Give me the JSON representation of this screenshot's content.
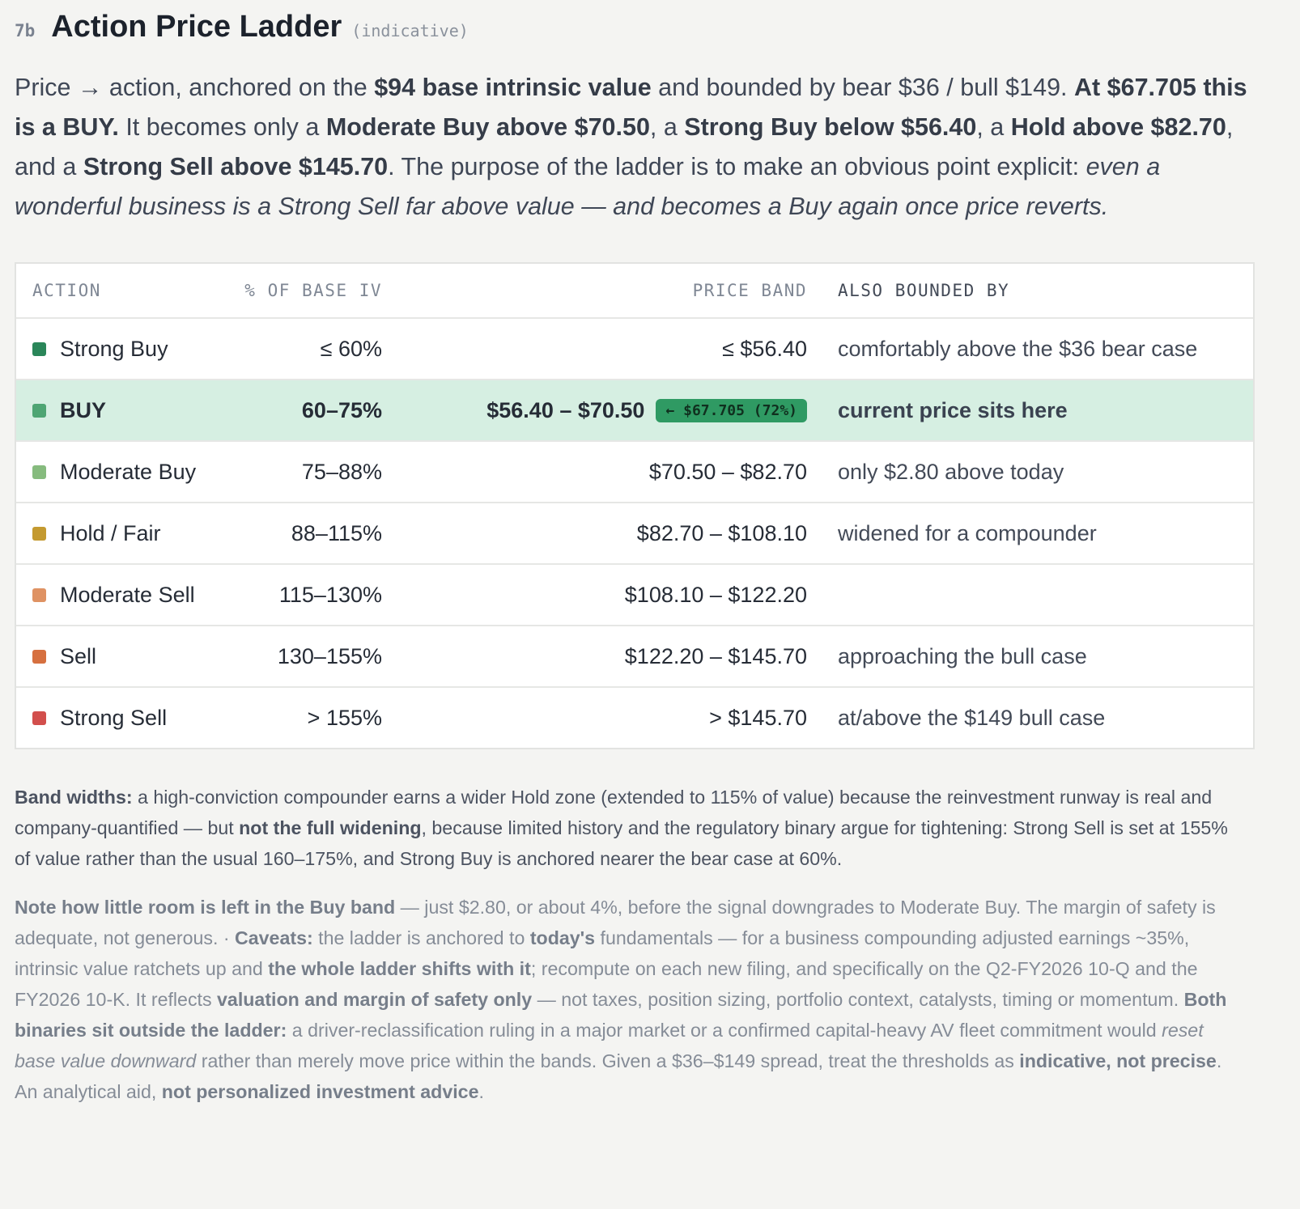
{
  "header": {
    "number": "7b",
    "title": "Action Price Ladder",
    "tag": "(indicative)"
  },
  "intro": [
    {
      "text": "Price → action, anchored on the "
    },
    {
      "text": "$94 base intrinsic value",
      "bold": true
    },
    {
      "text": " and bounded by bear $36 / bull $149. "
    },
    {
      "text": "At $67.705 this is a BUY.",
      "bold": true
    },
    {
      "text": " It becomes only a "
    },
    {
      "text": "Moderate Buy above $70.50",
      "bold": true
    },
    {
      "text": ", a "
    },
    {
      "text": "Strong Buy below $56.40",
      "bold": true
    },
    {
      "text": ", a "
    },
    {
      "text": "Hold above $82.70",
      "bold": true
    },
    {
      "text": ", and a "
    },
    {
      "text": "Strong Sell above $145.70",
      "bold": true
    },
    {
      "text": ". The purpose of the ladder is to make an obvious point explicit: "
    },
    {
      "text": "even a wonderful business is a Strong Sell far above value — and becomes a Buy again once price reverts.",
      "italic": true
    }
  ],
  "table": {
    "columns": [
      "ACTION",
      "% OF BASE IV",
      "PRICE BAND",
      "ALSO BOUNDED BY"
    ],
    "rows": [
      {
        "color": "#2a8659",
        "action": "Strong Buy",
        "pct": "≤ 60%",
        "band": "≤ $56.40",
        "note": "comfortably above the $36 bear case"
      },
      {
        "color": "#4ea573",
        "action": "BUY",
        "pct": "60–75%",
        "band": "$56.40 – $70.50",
        "badge": "← $67.705 (72%)",
        "note": "current price sits here",
        "current": true
      },
      {
        "color": "#86bb7e",
        "action": "Moderate Buy",
        "pct": "75–88%",
        "band": "$70.50 – $82.70",
        "note": "only $2.80 above today"
      },
      {
        "color": "#c49a30",
        "action": "Hold / Fair",
        "pct": "88–115%",
        "band": "$82.70 – $108.10",
        "note": "widened for a compounder"
      },
      {
        "color": "#df9263",
        "action": "Moderate Sell",
        "pct": "115–130%",
        "band": "$108.10 – $122.20"
      },
      {
        "color": "#d6703f",
        "action": "Sell",
        "pct": "130–155%",
        "band": "$122.20 – $145.70",
        "note": "approaching the bull case"
      },
      {
        "color": "#d24f4c",
        "action": "Strong Sell",
        "pct": "> 155%",
        "band": "> $145.70",
        "note": "at/above the $149 bull case"
      }
    ]
  },
  "notes": [
    [
      {
        "text": "Band widths:",
        "bold": true
      },
      {
        "text": " a high-conviction compounder earns a wider Hold zone (extended to 115% of value) because the reinvestment runway is real and company-quantified — but "
      },
      {
        "text": "not the full widening",
        "bold": true
      },
      {
        "text": ", because limited history and the regulatory binary argue for tightening: Strong Sell is set at 155% of value rather than the usual 160–175%, and Strong Buy is anchored nearer the bear case at 60%."
      }
    ],
    [
      {
        "text": "Note how little room is left in the Buy band",
        "bold": true
      },
      {
        "text": " — just $2.80, or about 4%, before the signal downgrades to Moderate Buy. The margin of safety is adequate, not generous.  ·  "
      },
      {
        "text": "Caveats:",
        "bold": true
      },
      {
        "text": " the ladder is anchored to "
      },
      {
        "text": "today's",
        "bold": true
      },
      {
        "text": " fundamentals — for a business compounding adjusted earnings ~35%, intrinsic value ratchets up and "
      },
      {
        "text": "the whole ladder shifts with it",
        "bold": true
      },
      {
        "text": "; recompute on each new filing, and specifically on the Q2-FY2026 10-Q and the FY2026 10-K. It reflects "
      },
      {
        "text": "valuation and margin of safety only",
        "bold": true
      },
      {
        "text": " — not taxes, position sizing, portfolio context, catalysts, timing or momentum. "
      },
      {
        "text": "Both binaries sit outside the ladder:",
        "bold": true
      },
      {
        "text": " a driver-reclassification ruling in a major market or a confirmed capital-heavy AV fleet commitment would "
      },
      {
        "text": "reset base value downward",
        "italic": true
      },
      {
        "text": " rather than merely move price within the bands. Given a $36–$149 spread, treat the thresholds as "
      },
      {
        "text": "indicative, not precise",
        "bold": true
      },
      {
        "text": ". An analytical aid, "
      },
      {
        "text": "not personalized investment advice",
        "bold": true
      },
      {
        "text": "."
      }
    ]
  ]
}
